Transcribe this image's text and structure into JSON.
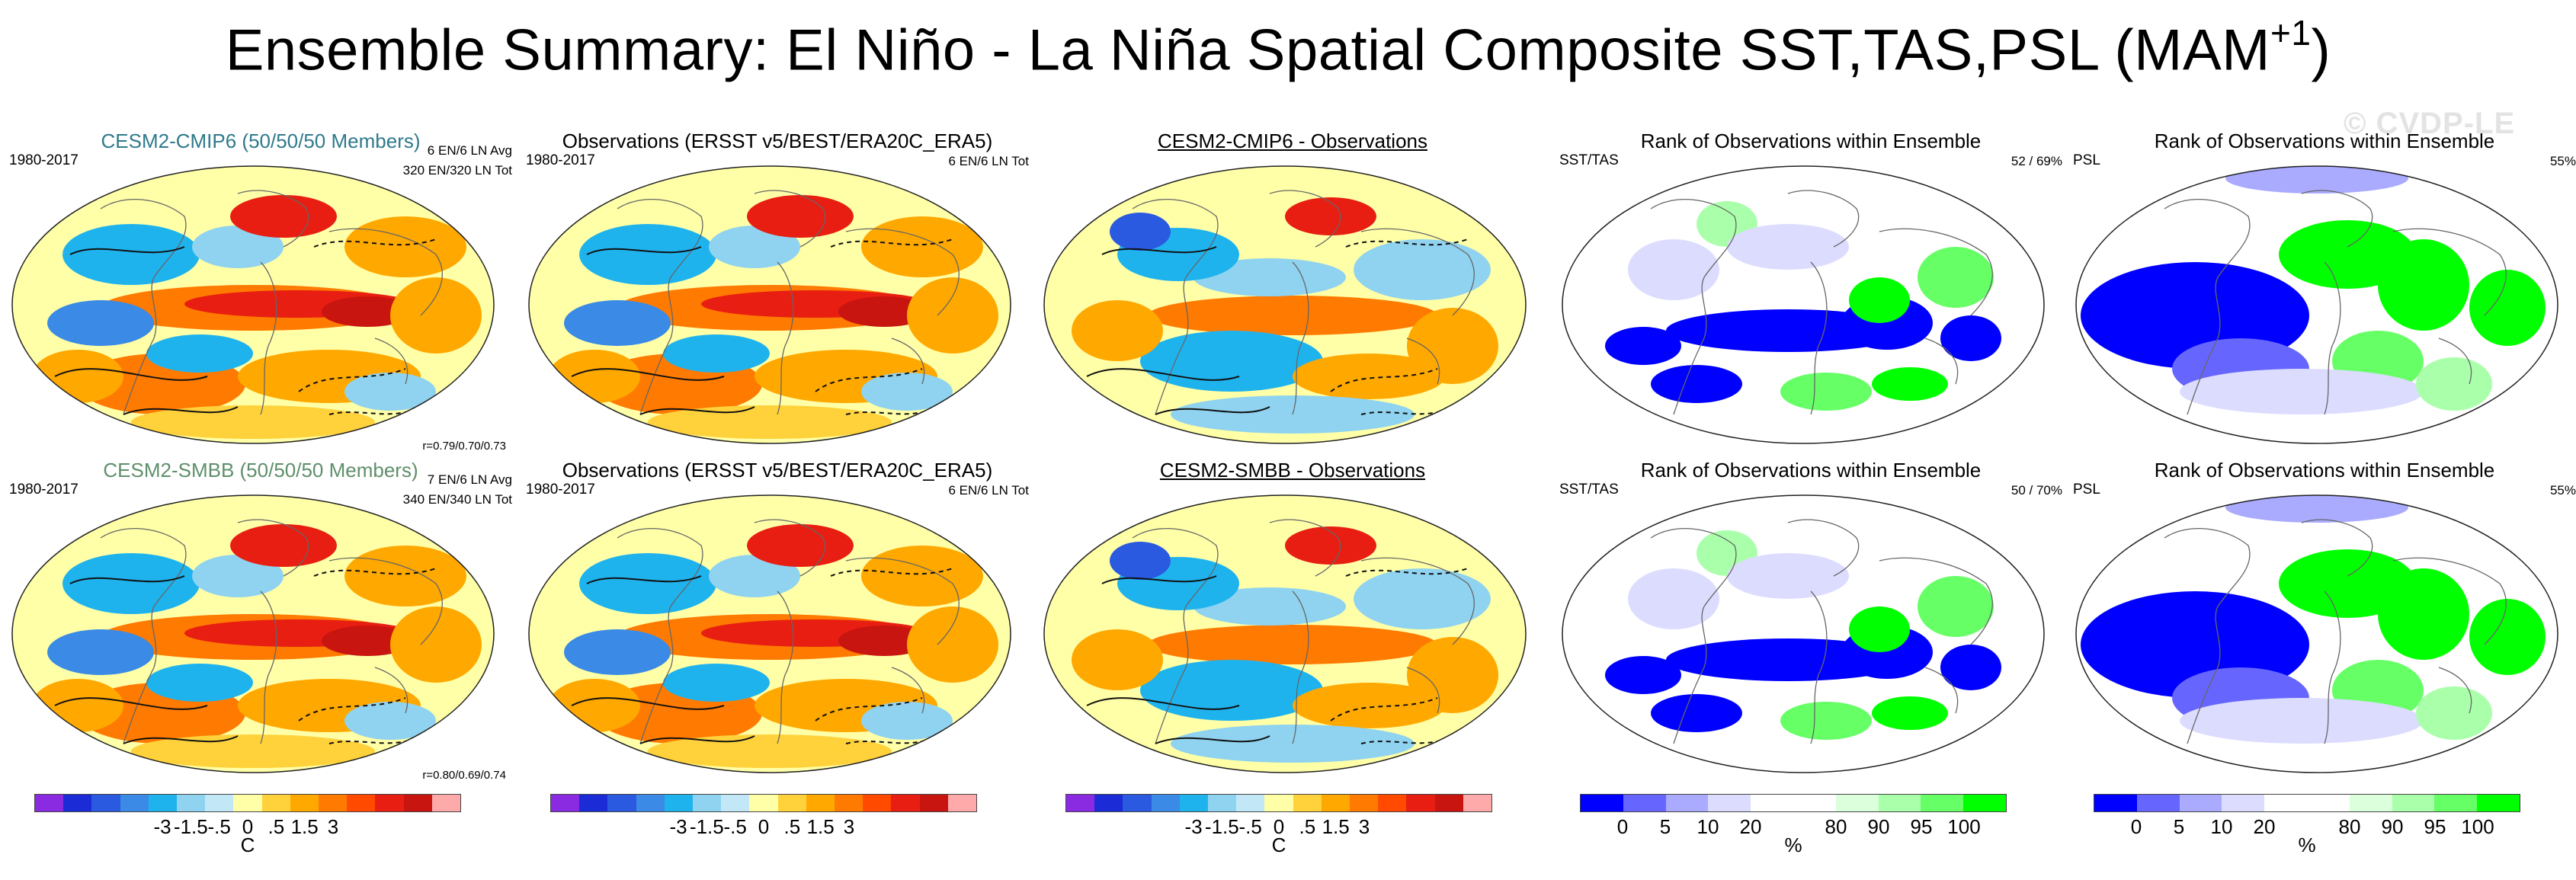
{
  "title": {
    "main": "Ensemble Summary: El Niño - La Niña Spatial Composite SST,TAS,PSL (MAM",
    "sup": "+1",
    "close": ")"
  },
  "watermark": "© CVDP-LE",
  "colors": {
    "diverging": [
      "#8a2be2",
      "#1b2bd6",
      "#2a5ae0",
      "#3a8ae6",
      "#1fb3ee",
      "#8fd3f0",
      "#c2e8f7",
      "#ffffa8",
      "#ffd23c",
      "#ffa800",
      "#ff7a00",
      "#ff4a00",
      "#e81e12",
      "#c81510",
      "#ffaaaa"
    ],
    "rank": [
      "#0000ff",
      "#6666ff",
      "#aaaaff",
      "#dcdcff",
      "#ffffff",
      "#ffffff",
      "#dcffdc",
      "#aaffaa",
      "#66ff66",
      "#00ff00"
    ]
  },
  "panels": [
    {
      "title": "CESM2-CMIP6 (50/50/50 Members)",
      "style": "blue",
      "period": "1980-2017",
      "ens": "6 EN/6 LN Avg",
      "tot": "320 EN/320 LN Tot",
      "r": "r=0.79/0.70/0.73",
      "kind": "ssta"
    },
    {
      "title": "Observations (ERSST v5/BEST/ERA20C_ERA5)",
      "style": "",
      "period": "1980-2017",
      "ens": "",
      "tot": "6 EN/6 LN Tot",
      "r": "",
      "kind": "ssta"
    },
    {
      "title": "CESM2-CMIP6 - Observations",
      "style": "u",
      "period": "",
      "ens": "",
      "tot": "",
      "r": "",
      "kind": "diff"
    },
    {
      "title": "Rank of Observations within Ensemble",
      "style": "",
      "period": "SST/TAS",
      "ens": "",
      "tot": "52 /  69%",
      "r": "",
      "kind": "rank"
    },
    {
      "title": "Rank of Observations within Ensemble",
      "style": "",
      "period": "PSL",
      "ens": "",
      "tot": "55%",
      "r": "",
      "kind": "rankpsl"
    },
    {
      "title": "CESM2-SMBB (50/50/50 Members)",
      "style": "green",
      "period": "1980-2017",
      "ens": "7 EN/6 LN Avg",
      "tot": "340 EN/340 LN Tot",
      "r": "r=0.80/0.69/0.74",
      "kind": "ssta"
    },
    {
      "title": "Observations (ERSST v5/BEST/ERA20C_ERA5)",
      "style": "",
      "period": "1980-2017",
      "ens": "",
      "tot": "6 EN/6 LN Tot",
      "r": "",
      "kind": "ssta"
    },
    {
      "title": "CESM2-SMBB - Observations",
      "style": "u",
      "period": "",
      "ens": "",
      "tot": "",
      "r": "",
      "kind": "diff"
    },
    {
      "title": "Rank of Observations within Ensemble",
      "style": "",
      "period": "SST/TAS",
      "ens": "",
      "tot": "50 /  70%",
      "r": "",
      "kind": "rank"
    },
    {
      "title": "Rank of Observations within Ensemble",
      "style": "",
      "period": "PSL",
      "ens": "",
      "tot": "55%",
      "r": "",
      "kind": "rankpsl"
    }
  ],
  "colorbars": {
    "diverging": {
      "ticks": [
        "-3",
        "-1.5",
        "-.5",
        "0",
        ".5",
        "1.5",
        "3"
      ],
      "unit": "C"
    },
    "rank": {
      "ticks": [
        "0",
        "5",
        "10",
        "20",
        "80",
        "90",
        "95",
        "100"
      ],
      "unit": "%"
    }
  }
}
